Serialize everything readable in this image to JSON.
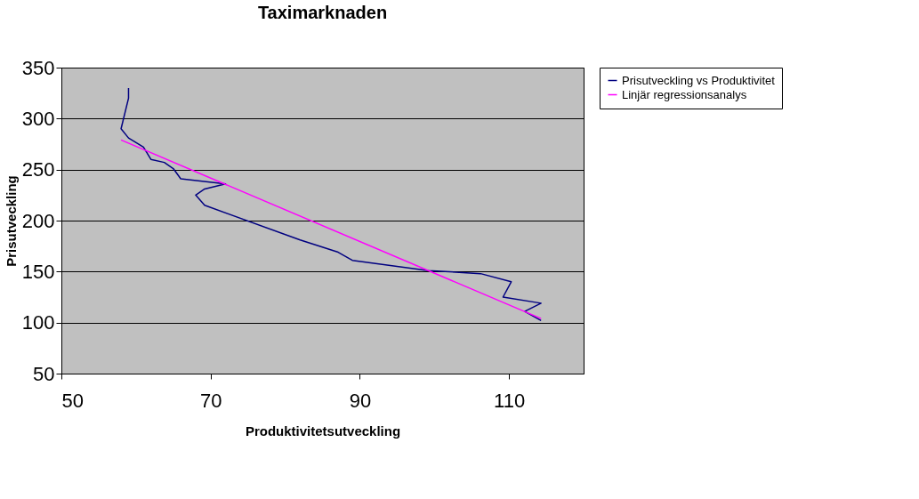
{
  "chart_data": {
    "type": "line",
    "title": "Taximarknaden",
    "xlabel": "Produktivitetsutveckling",
    "ylabel": "Prisutveckling",
    "xlim": [
      50,
      120
    ],
    "xticks": [
      50,
      70,
      90,
      110
    ],
    "ylim": [
      50,
      350
    ],
    "yticks": [
      50,
      100,
      150,
      200,
      250,
      300,
      350
    ],
    "grid": "y",
    "legend": "right",
    "marker": "none",
    "line_style": "solid",
    "series": [
      {
        "name": "Prisutveckling vs Produktivitet",
        "color": "#000080",
        "x": [
          59,
          59,
          58,
          59,
          61,
          62,
          63.8,
          65,
          66,
          72,
          69.2,
          68,
          69.2,
          82,
          87.1,
          89,
          99.2,
          106.2,
          110.3,
          109.2,
          114.3,
          112.1,
          114.3
        ],
        "values": [
          330,
          320,
          290,
          281,
          272,
          260,
          257,
          251,
          241,
          236,
          231,
          225,
          215,
          181,
          169,
          161,
          151,
          148,
          140,
          125,
          119,
          111,
          102
        ]
      },
      {
        "name": "Linjär regressionsanalys",
        "color": "#ff00ff",
        "x": [
          58,
          114.3
        ],
        "values": [
          279,
          104
        ]
      }
    ]
  }
}
